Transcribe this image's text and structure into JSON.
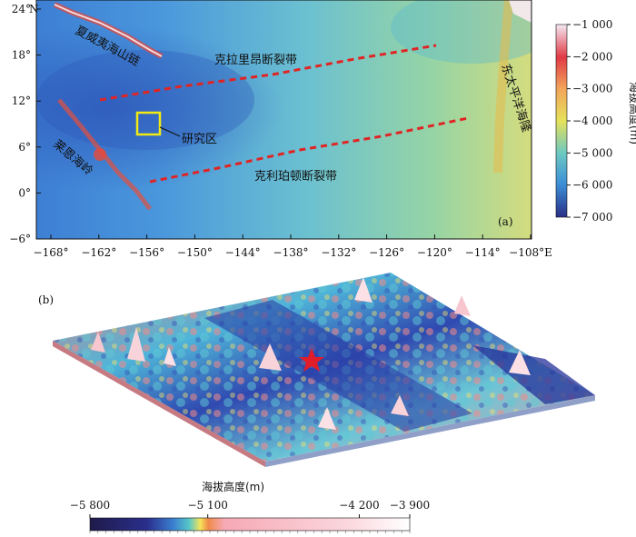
{
  "panel_a": {
    "label": "(a)",
    "lat_ticks": [
      "24°",
      "18°",
      "12°",
      "6°",
      "0°",
      "−6°"
    ],
    "lat_unit": "N",
    "lon_ticks": [
      "−168°",
      "−162°",
      "−156°",
      "−150°",
      "−144°",
      "−138°",
      "−132°",
      "−126°",
      "−120°",
      "−114°",
      "−108°E"
    ],
    "features": {
      "hawaii": "夏威夷海山链",
      "clarion": "克拉里昂断裂带",
      "clipperton": "克利珀顿断裂带",
      "study_area": "研究区",
      "line_islands": "莱恩海岭",
      "epr": "东太平洋海隆"
    },
    "colorbar": {
      "title": "海拔高度(m)",
      "ticks": [
        "−1 000",
        "−2 000",
        "−3 000",
        "−4 000",
        "−5 000",
        "−6 000",
        "−7 000"
      ],
      "colors": [
        "#f4e9f4",
        "#e13a45",
        "#f2a35a",
        "#e6e25a",
        "#6cc8c2",
        "#3b8ed6",
        "#2a2f86"
      ]
    }
  },
  "panel_b": {
    "label": "(b)",
    "colorbar": {
      "title": "海拔高度(m)",
      "ticks": [
        "−5 800",
        "−5 100",
        "−4 200",
        "−3 900"
      ],
      "colors": [
        "#1e1a4a",
        "#2b2f8c",
        "#3a7fd0",
        "#56c7c8",
        "#f5e45a",
        "#f08a4a",
        "#f6a9b5",
        "#ffffff"
      ]
    },
    "marker": "star"
  }
}
